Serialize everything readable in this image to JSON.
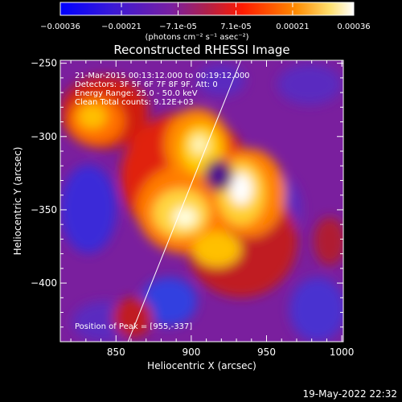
{
  "colorbar": {
    "ticks": [
      -0.00036,
      -0.00021,
      -7.1e-05,
      7.1e-05,
      0.00021,
      0.00036
    ],
    "tick_labels": [
      "-0.00036",
      "-0.00021",
      "-7.1e-05",
      "7.1e-05",
      "0.00021",
      "0.00036"
    ],
    "unit_label": "(photons cm⁻² s⁻¹ asec⁻²)",
    "range": [
      -0.00036,
      0.00036
    ]
  },
  "annotations": {
    "line1": "21-Mar-2015 00:13:12.000  to 00:19:12.000",
    "line2": "Detectors: 3F 5F 6F 7F 8F 9F, Att: 0",
    "line3": "Energy Range: 25.0 - 50.0 keV",
    "line4": "Clean     Total counts: 9.12E+03",
    "peak": "Position of Peak = [955,-337]"
  },
  "footer": {
    "date": "19-May-2022 22:32"
  },
  "chart_data": {
    "type": "heatmap",
    "title": "Reconstructed RHESSI Image",
    "xlabel": "Heliocentric X (arcsec)",
    "ylabel": "Heliocentric Y (arcsec)",
    "xlim": [
      813,
      1001
    ],
    "ylim": [
      -440,
      -248
    ],
    "x_ticks": [
      850,
      900,
      950,
      1000
    ],
    "y_ticks": [
      -400,
      -350,
      -300,
      -250
    ],
    "peak": [
      955,
      -337
    ],
    "limb_line": {
      "x": [
        858,
        933
      ],
      "y": [
        -440,
        -248
      ]
    },
    "colormap": [
      "#0000ff",
      "#4c1cdc",
      "#7a23a8",
      "#9e2a6a",
      "#ff0000",
      "#ff6f00",
      "#ffc400",
      "#ffffff"
    ]
  }
}
